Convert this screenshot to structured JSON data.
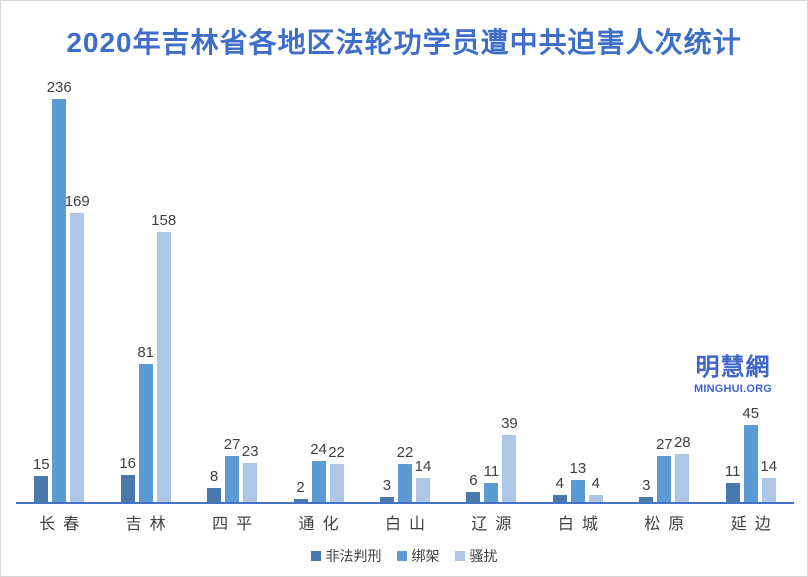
{
  "title": "2020年吉林省各地区法轮功学员遭中共迫害人次统计",
  "watermark": {
    "cn": "明慧網",
    "en": "MINGHUI.ORG"
  },
  "colors": {
    "title": "#3e6ec8",
    "axis_line": "#4472c4",
    "value_label": "#404040",
    "category_label": "#404040",
    "legend_text": "#404040",
    "watermark": "#4066c8",
    "background": "#ffffff",
    "series_dark": "#4878ac",
    "series_medium": "#5b9bd5",
    "series_light": "#aec7e6"
  },
  "chart_data": {
    "type": "bar",
    "title": "2020年吉林省各地区法轮功学员遭中共迫害人次统计",
    "categories": [
      "长春",
      "吉林",
      "四平",
      "通化",
      "白山",
      "辽源",
      "白城",
      "松原",
      "延边"
    ],
    "series": [
      {
        "name": "非法判刑",
        "color": "#4878ac",
        "values": [
          15,
          16,
          8,
          2,
          3,
          6,
          4,
          3,
          11
        ]
      },
      {
        "name": "绑架",
        "color": "#5b9bd5",
        "values": [
          236,
          81,
          27,
          24,
          22,
          11,
          13,
          27,
          45
        ]
      },
      {
        "name": "骚扰",
        "color": "#aec7e6",
        "values": [
          169,
          158,
          23,
          22,
          14,
          39,
          4,
          28,
          14
        ]
      }
    ],
    "xlabel": "",
    "ylabel": "",
    "ylim": [
      0,
      236
    ],
    "grid": false,
    "y_axis_visible": false,
    "value_labels": true,
    "legend_position": "bottom"
  }
}
